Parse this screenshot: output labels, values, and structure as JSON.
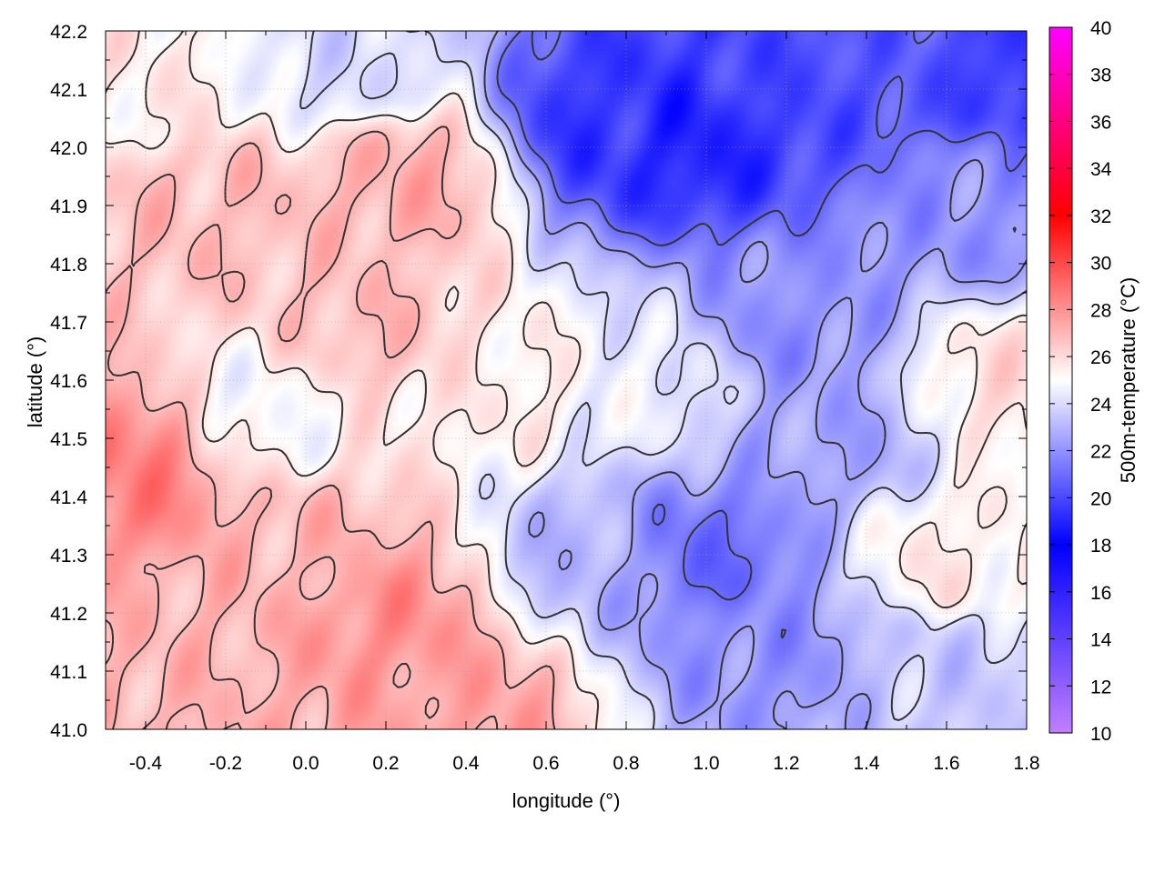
{
  "chart_data": {
    "type": "heatmap",
    "title": "",
    "xlabel": "longitude (°)",
    "ylabel": "latitude (°)",
    "colorbar_label": "500m-temperature (°C)",
    "xlim": [
      -0.5,
      1.8
    ],
    "ylim": [
      41.0,
      42.2
    ],
    "x_ticks": [
      "-0.4",
      "-0.2",
      "0.0",
      "0.2",
      "0.4",
      "0.6",
      "0.8",
      "1.0",
      "1.2",
      "1.4",
      "1.6",
      "1.8"
    ],
    "x_tick_values": [
      -0.4,
      -0.2,
      0.0,
      0.2,
      0.4,
      0.6,
      0.8,
      1.0,
      1.2,
      1.4,
      1.6,
      1.8
    ],
    "y_ticks": [
      "41.0",
      "41.1",
      "41.2",
      "41.3",
      "41.4",
      "41.5",
      "41.6",
      "41.7",
      "41.8",
      "41.9",
      "42.0",
      "42.1",
      "42.2"
    ],
    "y_tick_values": [
      41.0,
      41.1,
      41.2,
      41.3,
      41.4,
      41.5,
      41.6,
      41.7,
      41.8,
      41.9,
      42.0,
      42.1,
      42.2
    ],
    "colorbar_ticks": [
      "10",
      "12",
      "14",
      "16",
      "18",
      "20",
      "22",
      "24",
      "26",
      "28",
      "30",
      "32",
      "34",
      "36",
      "38",
      "40"
    ],
    "colorbar_tick_values": [
      10,
      12,
      14,
      16,
      18,
      20,
      22,
      24,
      26,
      28,
      30,
      32,
      34,
      36,
      38,
      40
    ],
    "color_range": [
      10,
      40
    ],
    "colormap": [
      {
        "value": 10,
        "color": "#c080ff"
      },
      {
        "value": 18,
        "color": "#0000ff"
      },
      {
        "value": 25,
        "color": "#ffffff"
      },
      {
        "value": 32,
        "color": "#ff0000"
      },
      {
        "value": 40,
        "color": "#ff00ff"
      }
    ],
    "grid": true,
    "contours": true,
    "contour_color": "#333333",
    "temperature_anchors": [
      {
        "lon": -0.45,
        "lat": 41.45,
        "t": 28.5
      },
      {
        "lon": -0.3,
        "lat": 41.15,
        "t": 27.0
      },
      {
        "lon": -0.25,
        "lat": 41.9,
        "t": 26.8
      },
      {
        "lon": 0.0,
        "lat": 41.3,
        "t": 27.0
      },
      {
        "lon": 0.2,
        "lat": 41.2,
        "t": 28.0
      },
      {
        "lon": 0.25,
        "lat": 41.95,
        "t": 27.2
      },
      {
        "lon": 0.15,
        "lat": 41.7,
        "t": 26.8
      },
      {
        "lon": 0.4,
        "lat": 41.05,
        "t": 27.5
      },
      {
        "lon": 0.5,
        "lat": 41.6,
        "t": 25.5
      },
      {
        "lon": 0.75,
        "lat": 42.05,
        "t": 19.5
      },
      {
        "lon": 0.95,
        "lat": 42.02,
        "t": 19.0
      },
      {
        "lon": 1.2,
        "lat": 42.15,
        "t": 20.0
      },
      {
        "lon": 1.5,
        "lat": 42.18,
        "t": 20.5
      },
      {
        "lon": 1.75,
        "lat": 42.15,
        "t": 19.5
      },
      {
        "lon": 1.7,
        "lat": 41.9,
        "t": 22.0
      },
      {
        "lon": 1.2,
        "lat": 41.7,
        "t": 22.0
      },
      {
        "lon": 1.0,
        "lat": 41.3,
        "t": 21.0
      },
      {
        "lon": 1.15,
        "lat": 41.15,
        "t": 22.0
      },
      {
        "lon": 1.3,
        "lat": 41.5,
        "t": 22.5
      },
      {
        "lon": 1.6,
        "lat": 41.1,
        "t": 23.5
      },
      {
        "lon": 1.6,
        "lat": 41.3,
        "t": 25.5
      },
      {
        "lon": 1.75,
        "lat": 41.6,
        "t": 25.8
      },
      {
        "lon": 0.85,
        "lat": 41.6,
        "t": 24.5
      },
      {
        "lon": 0.7,
        "lat": 41.3,
        "t": 23.0
      },
      {
        "lon": -0.1,
        "lat": 41.55,
        "t": 25.0
      },
      {
        "lon": -0.4,
        "lat": 42.1,
        "t": 25.5
      },
      {
        "lon": 0.1,
        "lat": 42.15,
        "t": 24.0
      }
    ]
  }
}
